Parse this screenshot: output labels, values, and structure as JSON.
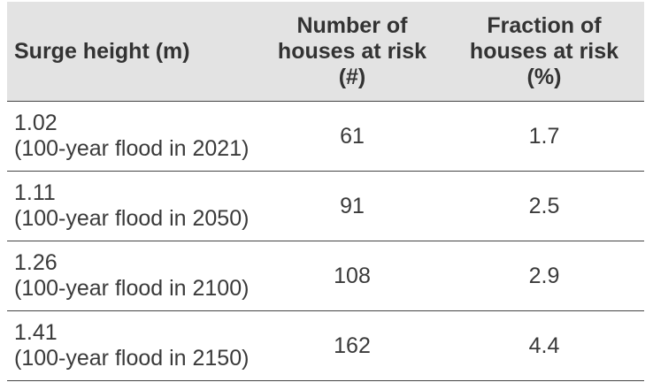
{
  "table": {
    "headers": {
      "surge": "Surge height (m)",
      "number": "Number of\nhouses at risk\n(#)",
      "fraction": "Fraction of\nhouses at risk\n(%)"
    },
    "rows": [
      {
        "height": "1.02",
        "note": "(100-year flood in 2021)",
        "number": "61",
        "fraction": "1.7"
      },
      {
        "height": "1.11",
        "note": "(100-year flood in 2050)",
        "number": "91",
        "fraction": "2.5"
      },
      {
        "height": "1.26",
        "note": "(100-year flood in 2100)",
        "number": "108",
        "fraction": "2.9"
      },
      {
        "height": "1.41",
        "note": "(100-year flood in 2150)",
        "number": "162",
        "fraction": "4.4"
      }
    ]
  }
}
